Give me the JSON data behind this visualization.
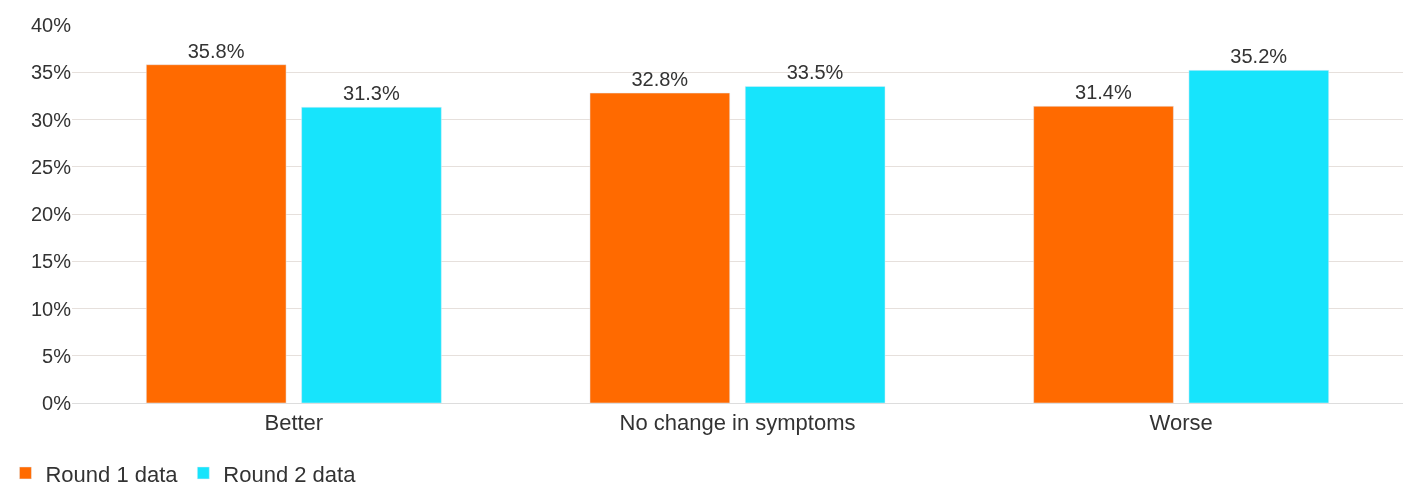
{
  "chart_data": {
    "type": "bar",
    "categories": [
      "Better",
      "No change in symptoms",
      "Worse"
    ],
    "series": [
      {
        "name": "Round 1 data",
        "color": "#ff6a00",
        "values": [
          35.8,
          32.8,
          31.4
        ],
        "value_labels": [
          "35.8%",
          "32.8%",
          "31.4%"
        ]
      },
      {
        "name": "Round 2 data",
        "color": "#17e4fc",
        "values": [
          31.3,
          33.5,
          35.2
        ],
        "value_labels": [
          "31.3%",
          "33.5%",
          "35.2%"
        ]
      }
    ],
    "ylim": [
      0,
      40
    ],
    "yticks": [
      {
        "value": 0,
        "label": "0%"
      },
      {
        "value": 5,
        "label": "5%"
      },
      {
        "value": 10,
        "label": "10%"
      },
      {
        "value": 15,
        "label": "15%"
      },
      {
        "value": 20,
        "label": "20%"
      },
      {
        "value": 25,
        "label": "25%"
      },
      {
        "value": 30,
        "label": "30%"
      },
      {
        "value": 35,
        "label": "35%"
      },
      {
        "value": 40,
        "label": "40%"
      }
    ],
    "grid": "y",
    "legend": "bottom left"
  }
}
